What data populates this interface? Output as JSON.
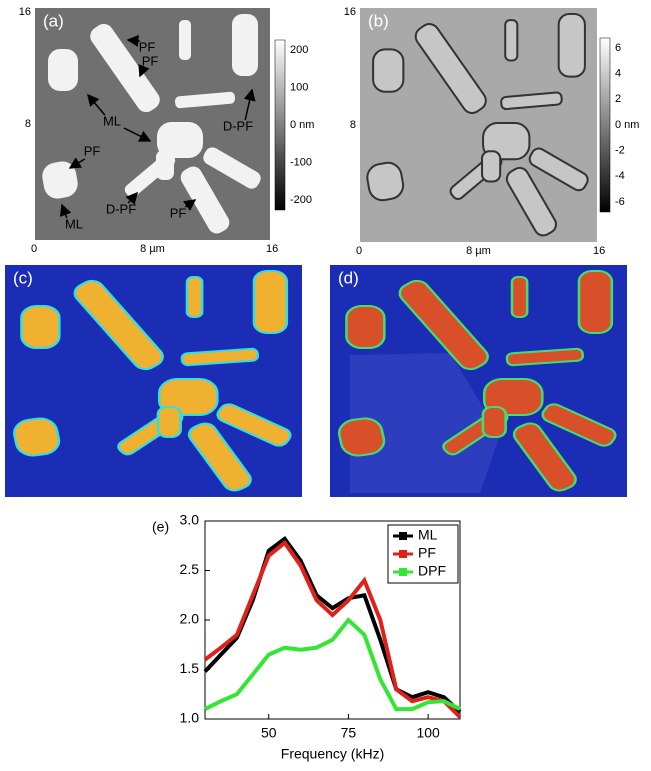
{
  "panels": [
    {
      "label": "(a)",
      "x_ticks": [
        "0",
        "8 µm",
        "16"
      ],
      "y_ticks": [
        "16",
        "8"
      ],
      "colorbar": [
        "200",
        "100",
        "0 nm",
        "-100",
        "-200"
      ],
      "annotations": [
        "PF",
        "PF",
        "ML",
        "PF",
        "ML",
        "D-PF",
        "D-PF",
        "PF"
      ]
    },
    {
      "label": "(b)",
      "x_ticks": [
        "0",
        "8 µm",
        "16"
      ],
      "y_ticks": [
        "16",
        "8"
      ],
      "colorbar": [
        "6",
        "4",
        "2",
        "0 nm",
        "-2",
        "-4",
        "-6"
      ]
    },
    {
      "label": "(c)"
    },
    {
      "label": "(d)"
    }
  ],
  "chart_data": {
    "type": "line",
    "label": "(e)",
    "x_label": "Frequency (kHz)",
    "x": [
      30,
      35,
      40,
      45,
      50,
      55,
      60,
      65,
      70,
      75,
      80,
      85,
      90,
      95,
      100,
      105,
      110
    ],
    "series": [
      {
        "name": "ML",
        "color": "#000000",
        "values": [
          1.48,
          1.65,
          1.82,
          2.2,
          2.7,
          2.82,
          2.6,
          2.25,
          2.12,
          2.22,
          2.25,
          1.8,
          1.3,
          1.22,
          1.27,
          1.22,
          1.07
        ]
      },
      {
        "name": "PF",
        "color": "#e0201a",
        "values": [
          1.6,
          1.72,
          1.85,
          2.25,
          2.65,
          2.78,
          2.55,
          2.2,
          2.05,
          2.2,
          2.4,
          2.0,
          1.3,
          1.18,
          1.22,
          1.18,
          1.02
        ]
      },
      {
        "name": "DPF",
        "color": "#33e633",
        "values": [
          1.1,
          1.18,
          1.25,
          1.45,
          1.65,
          1.72,
          1.7,
          1.72,
          1.8,
          2.0,
          1.85,
          1.4,
          1.1,
          1.1,
          1.17,
          1.18,
          1.1
        ]
      }
    ],
    "xlim": [
      30,
      110
    ],
    "xticks": [
      50,
      75,
      100
    ],
    "ylim": [
      1.0,
      3.0
    ],
    "yticks": [
      {
        "value": 1.0,
        "label": "1.0"
      },
      {
        "value": 1.5,
        "label": "1.5"
      },
      {
        "value": 2.0,
        "label": "2.0"
      },
      {
        "value": 2.5,
        "label": "2.5"
      },
      {
        "value": 3.0,
        "label": "3.0"
      }
    ],
    "legend": "upper right"
  }
}
